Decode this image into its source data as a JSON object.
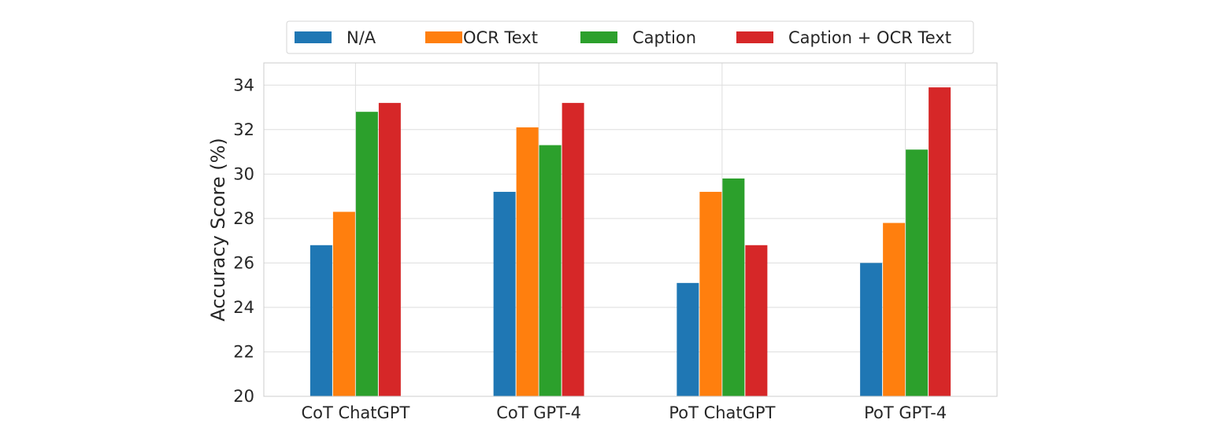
{
  "chart_data": {
    "type": "bar",
    "categories": [
      "CoT ChatGPT",
      "CoT GPT-4",
      "PoT ChatGPT",
      "PoT GPT-4"
    ],
    "series": [
      {
        "name": "N/A",
        "color": "#1f77b4",
        "values": [
          26.8,
          29.2,
          25.1,
          26.0
        ]
      },
      {
        "name": "OCR Text",
        "color": "#ff7f0e",
        "values": [
          28.3,
          32.1,
          29.2,
          27.8
        ]
      },
      {
        "name": "Caption",
        "color": "#2ca02c",
        "values": [
          32.8,
          31.3,
          29.8,
          31.1
        ]
      },
      {
        "name": "Caption + OCR Text",
        "color": "#d62728",
        "values": [
          33.2,
          33.2,
          26.8,
          33.9
        ]
      }
    ],
    "title": "",
    "xlabel": "",
    "ylabel": "Accuracy Score (%)",
    "ylim": [
      20,
      35
    ],
    "yticks": [
      20,
      22,
      24,
      26,
      28,
      30,
      32,
      34
    ],
    "grid": true,
    "legend_position": "top-center"
  }
}
